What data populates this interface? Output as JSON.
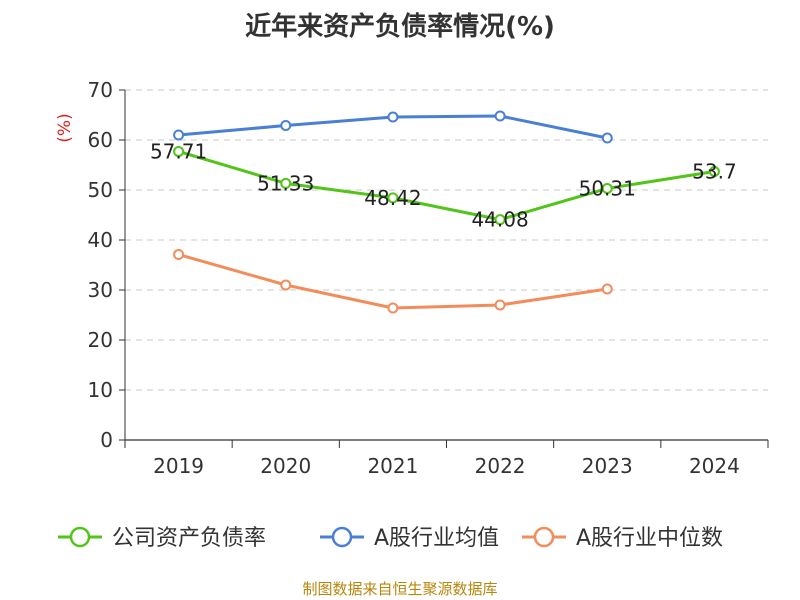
{
  "chart_data": {
    "type": "line",
    "title": "近年来资产负债率情况(%)",
    "ylabel": "(%)",
    "categories": [
      "2019",
      "2020",
      "2021",
      "2022",
      "2023",
      "2024"
    ],
    "ylim": [
      0,
      70
    ],
    "yticks": [
      0,
      10,
      20,
      30,
      40,
      50,
      60,
      70
    ],
    "grid": true,
    "legend_position": "bottom",
    "series": [
      {
        "name": "公司资产负债率",
        "color": "#52c41a",
        "values": [
          57.71,
          51.33,
          48.42,
          44.08,
          50.31,
          53.7
        ],
        "labels": [
          "57.71",
          "51.33",
          "48.42",
          "44.08",
          "50.31",
          "53.7"
        ]
      },
      {
        "name": "A股行业均值",
        "color": "#4a7fd6",
        "values": [
          61.0,
          62.9,
          64.6,
          64.8,
          60.4,
          null
        ]
      },
      {
        "name": "A股行业中位数",
        "color": "#f28c5a",
        "values": [
          37.1,
          31.0,
          26.4,
          27.0,
          30.2,
          null
        ]
      }
    ]
  },
  "footer": {
    "source": "制图数据来自恒生聚源数据库"
  }
}
